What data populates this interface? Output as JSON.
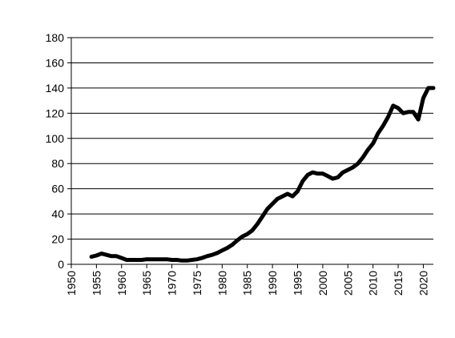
{
  "chart_data": {
    "type": "line",
    "title": "",
    "xlabel": "",
    "ylabel": "",
    "xlim": [
      1950,
      2022
    ],
    "ylim": [
      0,
      180
    ],
    "x_ticks": [
      1950,
      1955,
      1960,
      1965,
      1970,
      1975,
      1980,
      1985,
      1990,
      1995,
      2000,
      2005,
      2010,
      2015,
      2020
    ],
    "y_ticks": [
      0,
      20,
      40,
      60,
      80,
      100,
      120,
      140,
      160,
      180
    ],
    "grid": "horizontal",
    "legend": "none",
    "line_color": "#000000",
    "series": [
      {
        "x": [
          1954,
          1955,
          1956,
          1957,
          1958,
          1959,
          1960,
          1961,
          1962,
          1963,
          1964,
          1965,
          1966,
          1967,
          1968,
          1969,
          1970,
          1971,
          1972,
          1973,
          1974,
          1975,
          1976,
          1977,
          1978,
          1979,
          1980,
          1981,
          1982,
          1983,
          1984,
          1985,
          1986,
          1987,
          1988,
          1989,
          1990,
          1991,
          1992,
          1993,
          1994,
          1995,
          1996,
          1997,
          1998,
          1999,
          2000,
          2001,
          2002,
          2003,
          2004,
          2005,
          2006,
          2007,
          2008,
          2009,
          2010,
          2011,
          2012,
          2013,
          2014,
          2015,
          2016,
          2017,
          2018,
          2019,
          2020,
          2021,
          2022
        ],
        "values": [
          6,
          7,
          8.5,
          7.5,
          6.5,
          6.5,
          5,
          3.5,
          3.5,
          3.5,
          3.5,
          4,
          4,
          4,
          4,
          4,
          3.5,
          3.5,
          3,
          3,
          3.5,
          4,
          5,
          6.5,
          7.5,
          9,
          11,
          13,
          15.5,
          19,
          22,
          24,
          27,
          32,
          38,
          44,
          48,
          52,
          54,
          56,
          54,
          58,
          66,
          71,
          73,
          72,
          72,
          70,
          68,
          69,
          73,
          75,
          77,
          80,
          85,
          91,
          96,
          104,
          110,
          117,
          126,
          124,
          120,
          121,
          121,
          115,
          132,
          140,
          140
        ]
      }
    ]
  }
}
